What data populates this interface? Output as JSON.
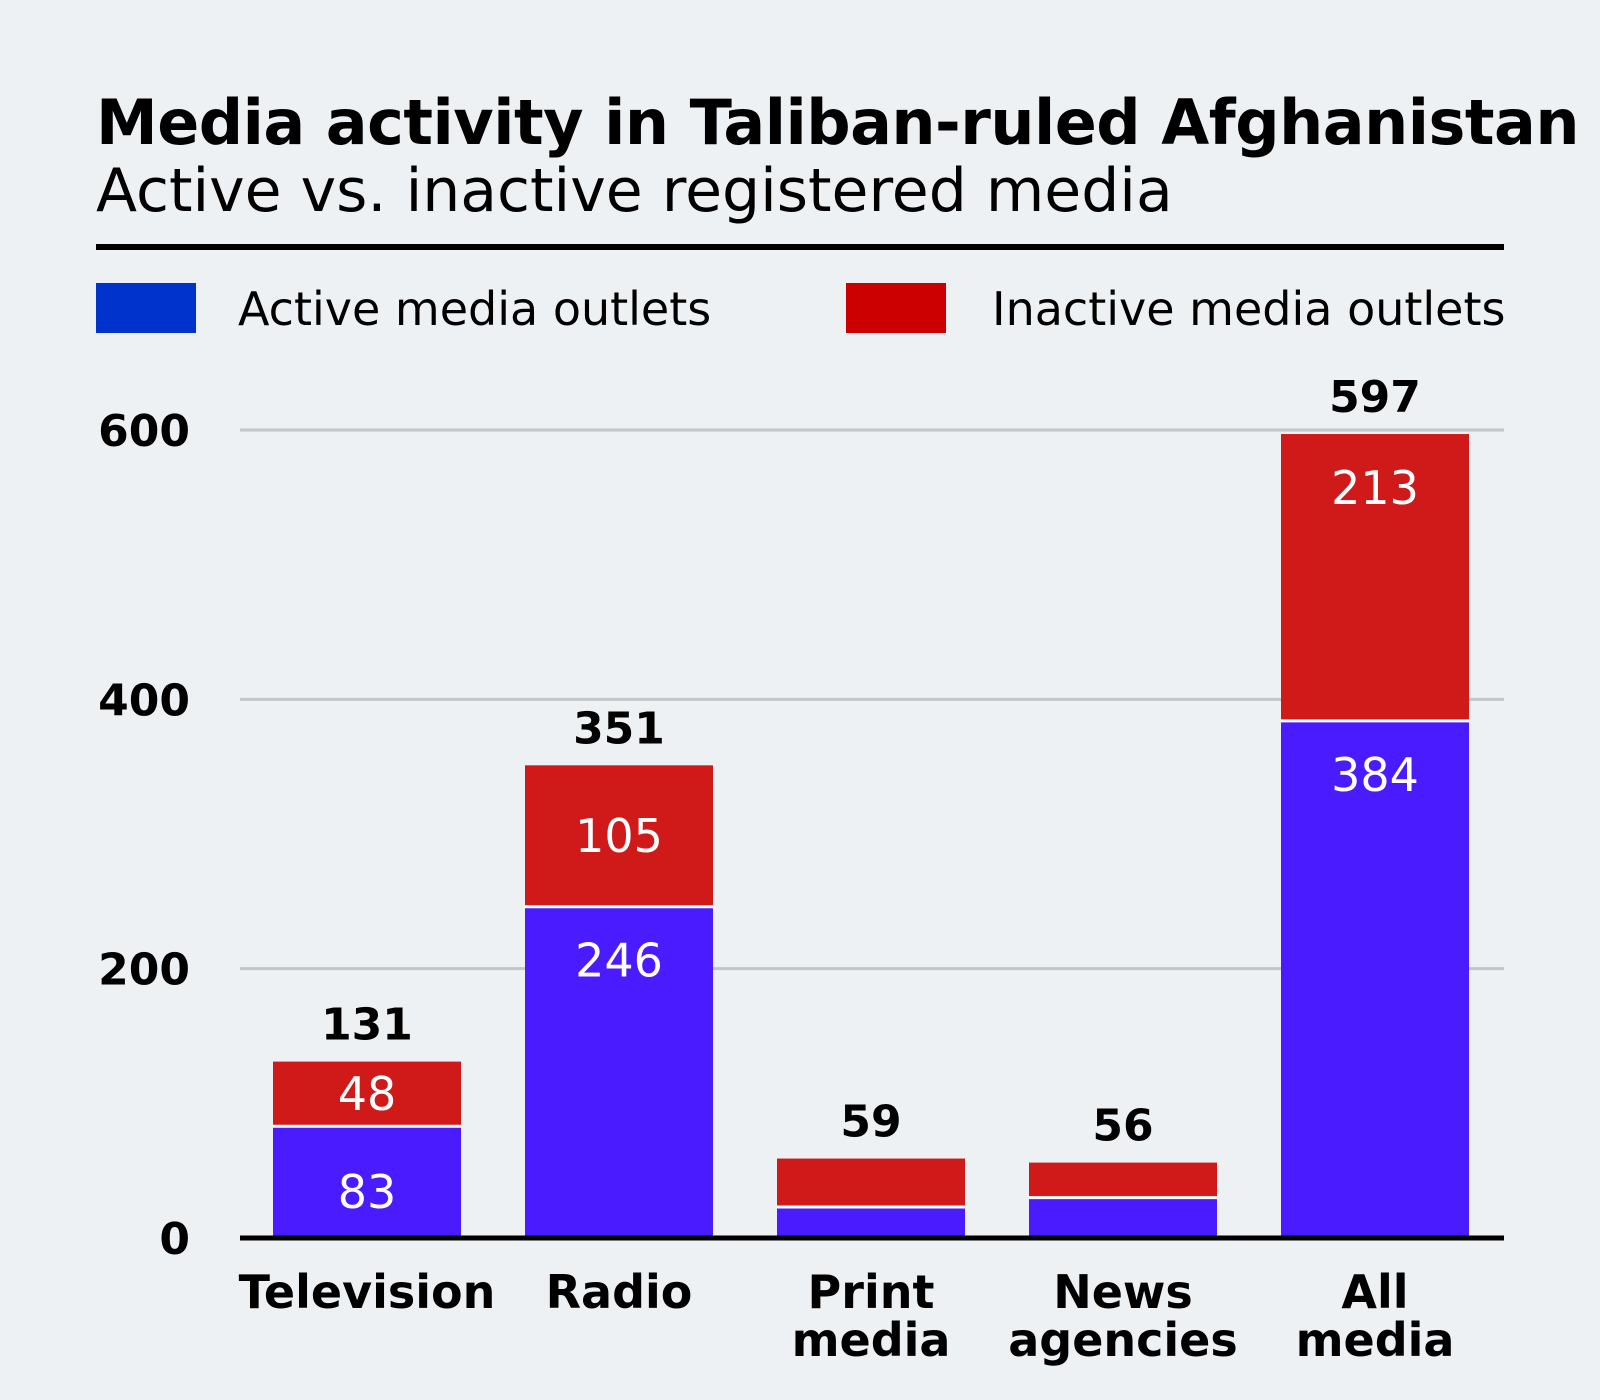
{
  "chart_data": {
    "type": "bar",
    "stacked": true,
    "title": "Media activity in Taliban-ruled Afghanistan",
    "subtitle": "Active vs. inactive registered media",
    "categories": [
      "Television",
      "Radio",
      "Print media",
      "News agencies",
      "All media"
    ],
    "series": [
      {
        "name": "Active media outlets",
        "color": "#0033cc",
        "bar_color": "#4a1bff",
        "values": [
          83,
          246,
          23,
          30,
          384
        ],
        "labels": [
          "83",
          "246",
          "",
          "",
          "384"
        ]
      },
      {
        "name": "Inactive media outlets",
        "color": "#cc0000",
        "bar_color": "#d01a1a",
        "values": [
          48,
          105,
          36,
          26,
          213
        ],
        "labels": [
          "48",
          "105",
          "",
          "",
          "213"
        ]
      }
    ],
    "totals": [
      "131",
      "351",
      "59",
      "56",
      "597"
    ],
    "ylim": [
      0,
      600
    ],
    "yticks": [
      "0",
      "200",
      "400",
      "600"
    ],
    "ytick_values": [
      0,
      200,
      400,
      600
    ],
    "grid": true,
    "legend_position": "top"
  }
}
